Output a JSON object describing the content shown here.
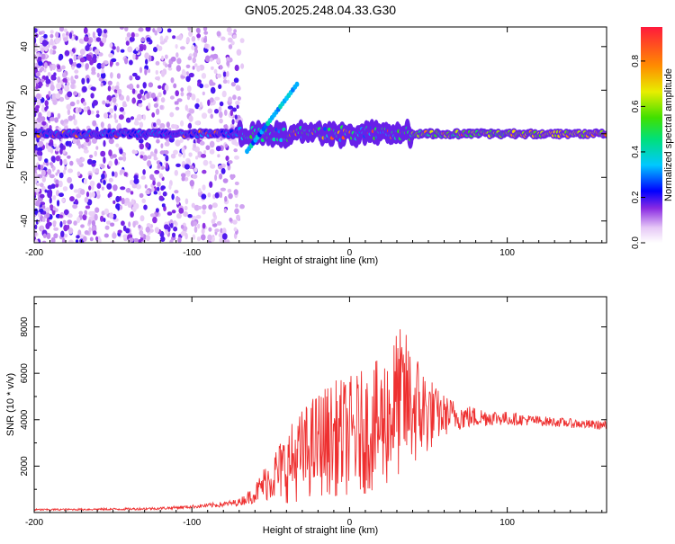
{
  "figure_title": "GN05.2025.248.04.33.G30",
  "chart_data": [
    {
      "type": "heatmap",
      "title": "GN05.2025.248.04.33.G30",
      "xlabel": "Height of straight line (km)",
      "ylabel": "Frequency (Hz)",
      "xlim": [
        -200,
        163
      ],
      "ylim": [
        -50,
        49
      ],
      "xticks": [
        -200,
        -100,
        0,
        100
      ],
      "xtick_labels": [
        "-200",
        "-100",
        "0",
        "100"
      ],
      "yticks": [
        -40,
        -20,
        0,
        20,
        40
      ],
      "ytick_labels": [
        "-40",
        "-20",
        "0",
        "20",
        "40"
      ],
      "colorbar": {
        "label": "Normalized spectral amplitude",
        "range": [
          0,
          0.95
        ],
        "ticks": [
          0.0,
          0.2,
          0.4,
          0.6,
          0.8
        ],
        "tick_labels": [
          "0.0",
          "0.2",
          "0.4",
          "0.6",
          "0.8"
        ]
      },
      "features": [
        {
          "name": "central-ridge",
          "x_range": [
            -200,
            163
          ],
          "freq_hz": 0,
          "amplitude_range": [
            0.2,
            0.9
          ]
        },
        {
          "name": "noise-scatter",
          "x_range": [
            -200,
            -68
          ],
          "freq_range_hz": [
            -50,
            49
          ],
          "amplitude_range": [
            0.05,
            0.2
          ]
        },
        {
          "name": "diagonal-branch",
          "x_start": -65,
          "x_end": -32,
          "freq_start_hz": -8,
          "freq_end_hz": 24
        }
      ]
    },
    {
      "type": "line",
      "xlabel": "Height of straight line (km)",
      "ylabel": "SNR (10 * v/v)",
      "xlim": [
        -200,
        163
      ],
      "ylim": [
        0,
        9300
      ],
      "xticks": [
        -200,
        -100,
        0,
        100
      ],
      "xtick_labels": [
        "-200",
        "-100",
        "0",
        "100"
      ],
      "yticks": [
        2000,
        4000,
        6000,
        8000
      ],
      "ytick_labels": [
        "2000",
        "4000",
        "6000",
        "8000"
      ],
      "series": [
        {
          "name": "SNR",
          "color": "#ee3030",
          "x": [
            -200,
            -180,
            -160,
            -140,
            -120,
            -100,
            -80,
            -70,
            -60,
            -55,
            -50,
            -40,
            -30,
            -20,
            -10,
            0,
            10,
            20,
            25,
            30,
            35,
            40,
            45,
            50,
            55,
            60,
            70,
            80,
            90,
            100,
            110,
            120,
            130,
            140,
            150,
            163
          ],
          "values": [
            120,
            130,
            140,
            150,
            180,
            250,
            350,
            450,
            800,
            1200,
            1500,
            2000,
            2500,
            3000,
            3200,
            3300,
            3500,
            3800,
            4200,
            4700,
            4800,
            4600,
            4400,
            4300,
            4200,
            4200,
            4150,
            4100,
            4100,
            4050,
            4000,
            3950,
            3900,
            3850,
            3800,
            3750
          ],
          "spread": [
            40,
            40,
            45,
            50,
            60,
            70,
            120,
            150,
            400,
            700,
            1000,
            1600,
            2000,
            2300,
            2500,
            2600,
            2700,
            2900,
            3100,
            3300,
            3100,
            2700,
            2300,
            1800,
            1200,
            900,
            600,
            450,
            350,
            300,
            250,
            220,
            200,
            200,
            200,
            200
          ]
        }
      ]
    }
  ]
}
